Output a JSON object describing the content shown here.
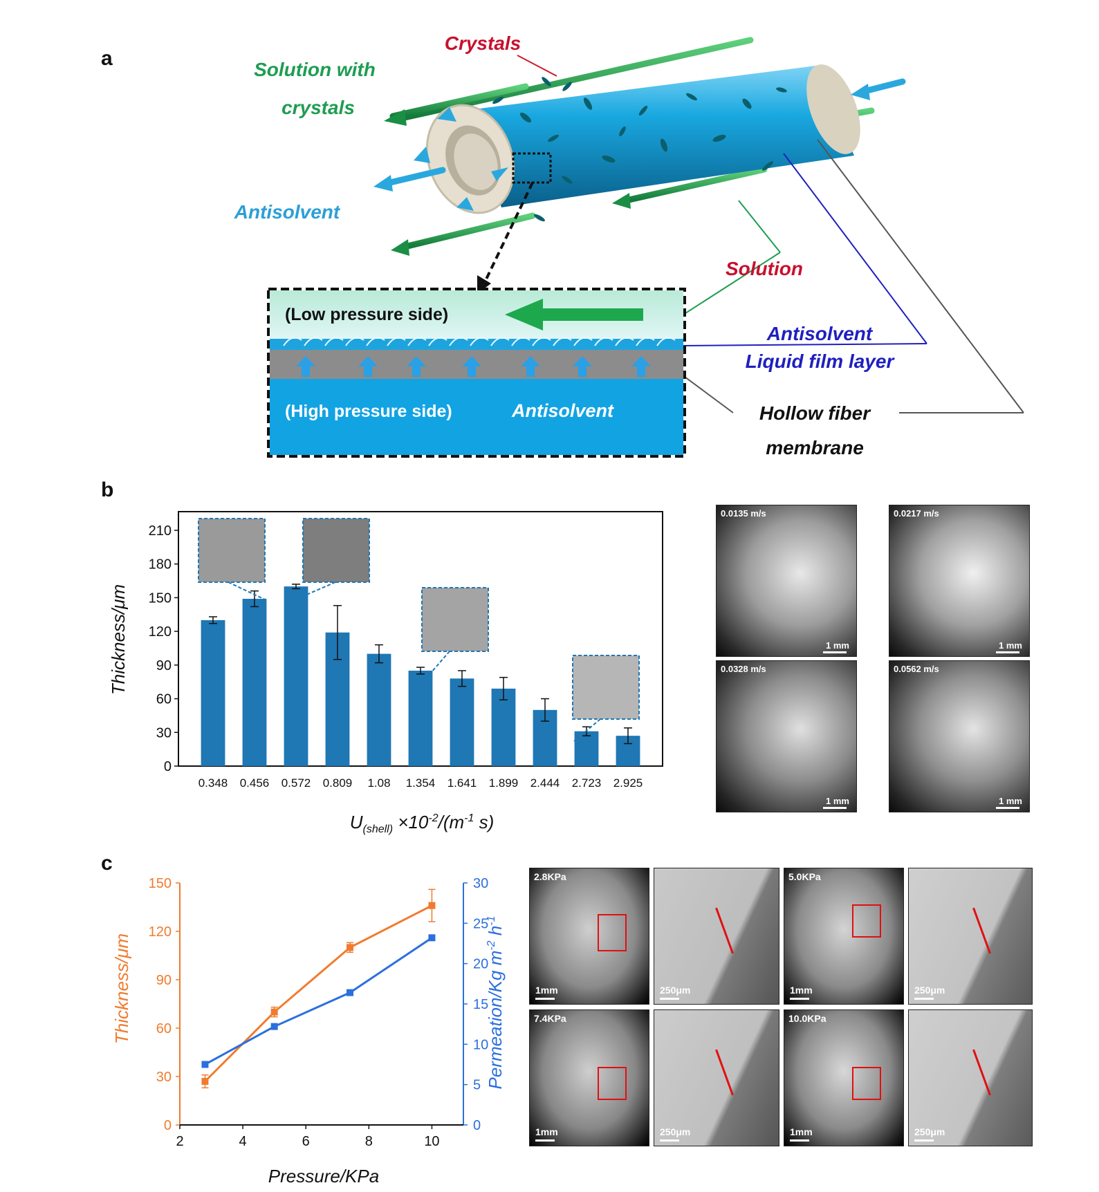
{
  "panel_a": {
    "letter": "a",
    "labels": {
      "crystals": "Crystals",
      "solution_with_1": "Solution with",
      "solution_with_2": "crystals",
      "antisolvent": "Antisolvent",
      "solution": "Solution",
      "film_1": "Antisolvent",
      "film_2": "Liquid film layer",
      "membrane_1": "Hollow fiber",
      "membrane_2": "membrane",
      "low_side": "(Low pressure side)",
      "high_side": "(High pressure side)",
      "high_antisolvent": "Antisolvent"
    },
    "colors": {
      "green": "#1e9d52",
      "red": "#c8102e",
      "blue": "#2c9fd6",
      "navy": "#1f1fbf",
      "fiber": "#1aa3d9"
    }
  },
  "panel_b": {
    "letter": "b",
    "chart_data": {
      "type": "bar",
      "categories": [
        "0.348",
        "0.456",
        "0.572",
        "0.809",
        "1.08",
        "1.354",
        "1.641",
        "1.899",
        "2.444",
        "2.723",
        "2.925"
      ],
      "values": [
        130,
        149,
        160,
        119,
        100,
        85,
        78,
        69,
        50,
        31,
        27
      ],
      "errors": [
        3,
        7,
        2,
        24,
        8,
        3,
        7,
        10,
        10,
        4,
        7
      ],
      "ylabel": "Thickness/μm",
      "xlabel_main": "U",
      "xlabel_sub": "(shell)",
      "xlabel_rest": " ×10",
      "xlabel_exp": "-2",
      "xlabel_unit": "/(m",
      "xlabel_unit_exp": "-1",
      "xlabel_end": " s)",
      "yticks": [
        0,
        30,
        60,
        90,
        120,
        150,
        180,
        210
      ],
      "ylim": [
        0,
        210
      ],
      "bar_color": "#1f77b4"
    },
    "micrographs": [
      {
        "label": "0.0135 m/s",
        "scale": "1 mm"
      },
      {
        "label": "0.0217 m/s",
        "scale": "1 mm"
      },
      {
        "label": "0.0328 m/s",
        "scale": "1 mm"
      },
      {
        "label": "0.0562 m/s",
        "scale": "1 mm"
      }
    ]
  },
  "panel_c": {
    "letter": "c",
    "chart_data": {
      "type": "line",
      "x": [
        2.8,
        5.0,
        7.4,
        10.0
      ],
      "series": [
        {
          "axis": "left",
          "values": [
            27,
            70,
            110,
            136
          ],
          "errors": [
            4,
            3,
            3,
            10
          ],
          "color": "#f07b2e"
        },
        {
          "axis": "right",
          "values": [
            7.5,
            12.2,
            16.4,
            23.2
          ],
          "errors": [
            0,
            0,
            0,
            0
          ],
          "color": "#2b6fde"
        }
      ],
      "xlabel": "Pressure/KPa",
      "ylabel_left": "Thickness/μm",
      "ylabel_right": "Permeation/Kg m",
      "ylabel_right_exp1": "-2",
      "ylabel_right_mid": " h",
      "ylabel_right_exp2": "-1",
      "xticks": [
        2,
        4,
        6,
        8,
        10
      ],
      "yticks_left": [
        0,
        30,
        60,
        90,
        120,
        150
      ],
      "yticks_right": [
        0,
        5,
        10,
        15,
        20,
        25,
        30
      ],
      "xlim": [
        2,
        11
      ],
      "ylim_left": [
        0,
        150
      ],
      "ylim_right": [
        0,
        30
      ]
    },
    "micrographs": [
      {
        "label": "2.8KPa",
        "scale": "1mm",
        "zoom_scale": "250μm"
      },
      {
        "label": "5.0KPa",
        "scale": "1mm",
        "zoom_scale": "250μm"
      },
      {
        "label": "7.4KPa",
        "scale": "1mm",
        "zoom_scale": "250μm"
      },
      {
        "label": "10.0KPa",
        "scale": "1mm",
        "zoom_scale": "250μm"
      }
    ]
  }
}
